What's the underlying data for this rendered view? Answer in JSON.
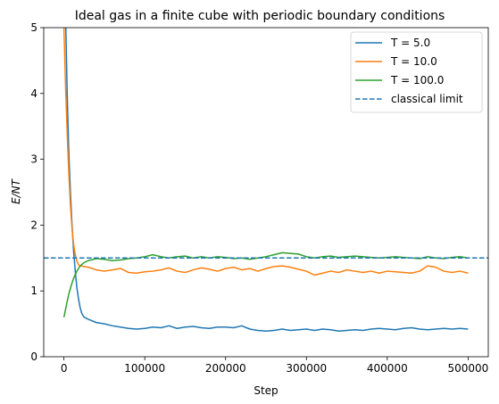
{
  "chart_data": {
    "type": "line",
    "title": "Ideal gas in a finite cube with periodic boundary conditions",
    "xlabel": "Step",
    "ylabel": "E/NT",
    "xlim": [
      -25000,
      525000
    ],
    "ylim": [
      0,
      5
    ],
    "xticks": [
      0,
      100000,
      200000,
      300000,
      400000,
      500000
    ],
    "xtick_labels": [
      "0",
      "100000",
      "200000",
      "300000",
      "400000",
      "500000"
    ],
    "yticks": [
      0,
      1,
      2,
      3,
      4,
      5
    ],
    "ytick_labels": [
      "0",
      "1",
      "2",
      "3",
      "4",
      "5"
    ],
    "grid": false,
    "legend_position": "top-right",
    "series": [
      {
        "name": "T = 5.0",
        "color": "#1f77b4",
        "style": "solid",
        "points": [
          [
            0,
            7.0
          ],
          [
            2000,
            5.2
          ],
          [
            4000,
            4.0
          ],
          [
            6000,
            3.1
          ],
          [
            8000,
            2.5
          ],
          [
            10000,
            2.0
          ],
          [
            12000,
            1.6
          ],
          [
            14000,
            1.3
          ],
          [
            16000,
            1.05
          ],
          [
            18000,
            0.88
          ],
          [
            20000,
            0.75
          ],
          [
            22000,
            0.66
          ],
          [
            25000,
            0.6
          ],
          [
            30000,
            0.57
          ],
          [
            40000,
            0.52
          ],
          [
            50000,
            0.5
          ],
          [
            60000,
            0.47
          ],
          [
            70000,
            0.45
          ],
          [
            80000,
            0.43
          ],
          [
            90000,
            0.42
          ],
          [
            100000,
            0.43
          ],
          [
            110000,
            0.45
          ],
          [
            120000,
            0.44
          ],
          [
            130000,
            0.47
          ],
          [
            140000,
            0.43
          ],
          [
            150000,
            0.45
          ],
          [
            160000,
            0.46
          ],
          [
            170000,
            0.44
          ],
          [
            180000,
            0.43
          ],
          [
            190000,
            0.45
          ],
          [
            200000,
            0.45
          ],
          [
            210000,
            0.44
          ],
          [
            220000,
            0.47
          ],
          [
            230000,
            0.42
          ],
          [
            240000,
            0.4
          ],
          [
            250000,
            0.39
          ],
          [
            260000,
            0.4
          ],
          [
            270000,
            0.42
          ],
          [
            280000,
            0.4
          ],
          [
            290000,
            0.41
          ],
          [
            300000,
            0.42
          ],
          [
            310000,
            0.4
          ],
          [
            320000,
            0.42
          ],
          [
            330000,
            0.41
          ],
          [
            340000,
            0.39
          ],
          [
            350000,
            0.4
          ],
          [
            360000,
            0.41
          ],
          [
            370000,
            0.4
          ],
          [
            380000,
            0.42
          ],
          [
            390000,
            0.43
          ],
          [
            400000,
            0.42
          ],
          [
            410000,
            0.41
          ],
          [
            420000,
            0.43
          ],
          [
            430000,
            0.44
          ],
          [
            440000,
            0.42
          ],
          [
            450000,
            0.41
          ],
          [
            460000,
            0.42
          ],
          [
            470000,
            0.43
          ],
          [
            480000,
            0.42
          ],
          [
            490000,
            0.43
          ],
          [
            500000,
            0.42
          ]
        ]
      },
      {
        "name": "T = 10.0",
        "color": "#ff7f0e",
        "style": "solid",
        "points": [
          [
            0,
            5.0
          ],
          [
            2000,
            4.1
          ],
          [
            4000,
            3.4
          ],
          [
            6000,
            2.8
          ],
          [
            8000,
            2.3
          ],
          [
            10000,
            1.95
          ],
          [
            12000,
            1.7
          ],
          [
            14000,
            1.55
          ],
          [
            16000,
            1.45
          ],
          [
            18000,
            1.4
          ],
          [
            20000,
            1.38
          ],
          [
            25000,
            1.37
          ],
          [
            30000,
            1.36
          ],
          [
            40000,
            1.32
          ],
          [
            50000,
            1.3
          ],
          [
            60000,
            1.32
          ],
          [
            70000,
            1.34
          ],
          [
            80000,
            1.28
          ],
          [
            90000,
            1.27
          ],
          [
            100000,
            1.29
          ],
          [
            110000,
            1.3
          ],
          [
            120000,
            1.32
          ],
          [
            130000,
            1.35
          ],
          [
            140000,
            1.3
          ],
          [
            150000,
            1.28
          ],
          [
            160000,
            1.32
          ],
          [
            170000,
            1.35
          ],
          [
            180000,
            1.33
          ],
          [
            190000,
            1.3
          ],
          [
            200000,
            1.34
          ],
          [
            210000,
            1.36
          ],
          [
            220000,
            1.32
          ],
          [
            230000,
            1.34
          ],
          [
            240000,
            1.3
          ],
          [
            250000,
            1.34
          ],
          [
            260000,
            1.37
          ],
          [
            270000,
            1.38
          ],
          [
            280000,
            1.36
          ],
          [
            290000,
            1.33
          ],
          [
            300000,
            1.3
          ],
          [
            310000,
            1.24
          ],
          [
            320000,
            1.27
          ],
          [
            330000,
            1.3
          ],
          [
            340000,
            1.28
          ],
          [
            350000,
            1.32
          ],
          [
            360000,
            1.3
          ],
          [
            370000,
            1.28
          ],
          [
            380000,
            1.3
          ],
          [
            390000,
            1.27
          ],
          [
            400000,
            1.3
          ],
          [
            410000,
            1.29
          ],
          [
            420000,
            1.28
          ],
          [
            430000,
            1.27
          ],
          [
            440000,
            1.3
          ],
          [
            450000,
            1.38
          ],
          [
            460000,
            1.36
          ],
          [
            470000,
            1.3
          ],
          [
            480000,
            1.28
          ],
          [
            490000,
            1.3
          ],
          [
            500000,
            1.27
          ]
        ]
      },
      {
        "name": "T = 100.0",
        "color": "#2ca02c",
        "style": "solid",
        "points": [
          [
            0,
            0.6
          ],
          [
            2000,
            0.72
          ],
          [
            4000,
            0.84
          ],
          [
            6000,
            0.95
          ],
          [
            8000,
            1.04
          ],
          [
            10000,
            1.12
          ],
          [
            12000,
            1.19
          ],
          [
            14000,
            1.25
          ],
          [
            16000,
            1.3
          ],
          [
            18000,
            1.34
          ],
          [
            20000,
            1.38
          ],
          [
            25000,
            1.43
          ],
          [
            30000,
            1.46
          ],
          [
            40000,
            1.49
          ],
          [
            50000,
            1.48
          ],
          [
            60000,
            1.46
          ],
          [
            70000,
            1.47
          ],
          [
            80000,
            1.49
          ],
          [
            90000,
            1.5
          ],
          [
            100000,
            1.52
          ],
          [
            110000,
            1.55
          ],
          [
            120000,
            1.52
          ],
          [
            130000,
            1.5
          ],
          [
            140000,
            1.52
          ],
          [
            150000,
            1.53
          ],
          [
            160000,
            1.5
          ],
          [
            170000,
            1.52
          ],
          [
            180000,
            1.5
          ],
          [
            190000,
            1.52
          ],
          [
            200000,
            1.51
          ],
          [
            210000,
            1.49
          ],
          [
            220000,
            1.5
          ],
          [
            230000,
            1.48
          ],
          [
            240000,
            1.5
          ],
          [
            250000,
            1.52
          ],
          [
            260000,
            1.55
          ],
          [
            270000,
            1.58
          ],
          [
            280000,
            1.57
          ],
          [
            290000,
            1.56
          ],
          [
            300000,
            1.52
          ],
          [
            310000,
            1.5
          ],
          [
            320000,
            1.52
          ],
          [
            330000,
            1.53
          ],
          [
            340000,
            1.51
          ],
          [
            350000,
            1.52
          ],
          [
            360000,
            1.53
          ],
          [
            370000,
            1.52
          ],
          [
            380000,
            1.51
          ],
          [
            390000,
            1.5
          ],
          [
            400000,
            1.51
          ],
          [
            410000,
            1.52
          ],
          [
            420000,
            1.51
          ],
          [
            430000,
            1.5
          ],
          [
            440000,
            1.49
          ],
          [
            450000,
            1.52
          ],
          [
            460000,
            1.5
          ],
          [
            470000,
            1.49
          ],
          [
            480000,
            1.51
          ],
          [
            490000,
            1.52
          ],
          [
            500000,
            1.5
          ]
        ]
      },
      {
        "name": "classical limit",
        "color": "#1f77b4",
        "style": "dashed",
        "y": 1.5
      }
    ]
  }
}
